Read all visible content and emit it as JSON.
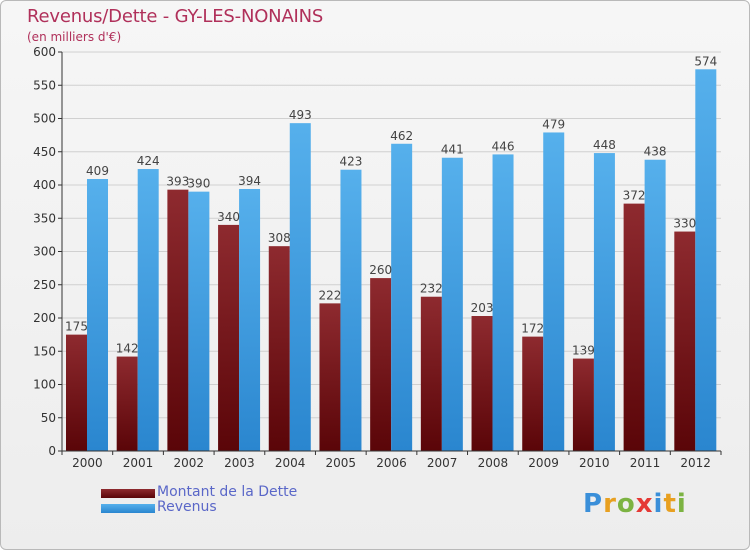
{
  "header": {
    "title": "Revenus/Dette - GY-LES-NONAINS",
    "subtitle": "(en milliers d'€)"
  },
  "legend": {
    "items": [
      {
        "label": "Montant de la Dette",
        "color": "#6b0a0a"
      },
      {
        "label": "Revenus",
        "color": "#3a9be0"
      }
    ]
  },
  "logo": {
    "text": "Proxiti",
    "letters": [
      {
        "ch": "P",
        "color": "#3a8fd9"
      },
      {
        "ch": "r",
        "color": "#e8a020"
      },
      {
        "ch": "o",
        "color": "#7cb342"
      },
      {
        "ch": "x",
        "color": "#e53935"
      },
      {
        "ch": "i",
        "color": "#3a8fd9"
      },
      {
        "ch": "t",
        "color": "#e8a020"
      },
      {
        "ch": "i",
        "color": "#7cb342"
      }
    ]
  },
  "chart_data": {
    "type": "bar",
    "title": "Revenus/Dette - GY-LES-NONAINS",
    "subtitle": "(en milliers d'€)",
    "categories": [
      "2000",
      "2001",
      "2002",
      "2003",
      "2004",
      "2005",
      "2006",
      "2007",
      "2008",
      "2009",
      "2010",
      "2011",
      "2012"
    ],
    "series": [
      {
        "name": "Montant de la Dette",
        "color": "#7a1a1f",
        "values": [
          175,
          142,
          393,
          340,
          308,
          222,
          260,
          232,
          203,
          172,
          139,
          372,
          330
        ]
      },
      {
        "name": "Revenus",
        "color": "#3d9de2",
        "values": [
          409,
          424,
          390,
          394,
          493,
          423,
          462,
          441,
          446,
          479,
          448,
          438,
          574
        ]
      }
    ],
    "ylim": [
      0,
      600
    ],
    "yticks": [
      0,
      50,
      100,
      150,
      200,
      250,
      300,
      350,
      400,
      450,
      500,
      550,
      600
    ],
    "grid": true,
    "legend_position": "bottom-left"
  }
}
